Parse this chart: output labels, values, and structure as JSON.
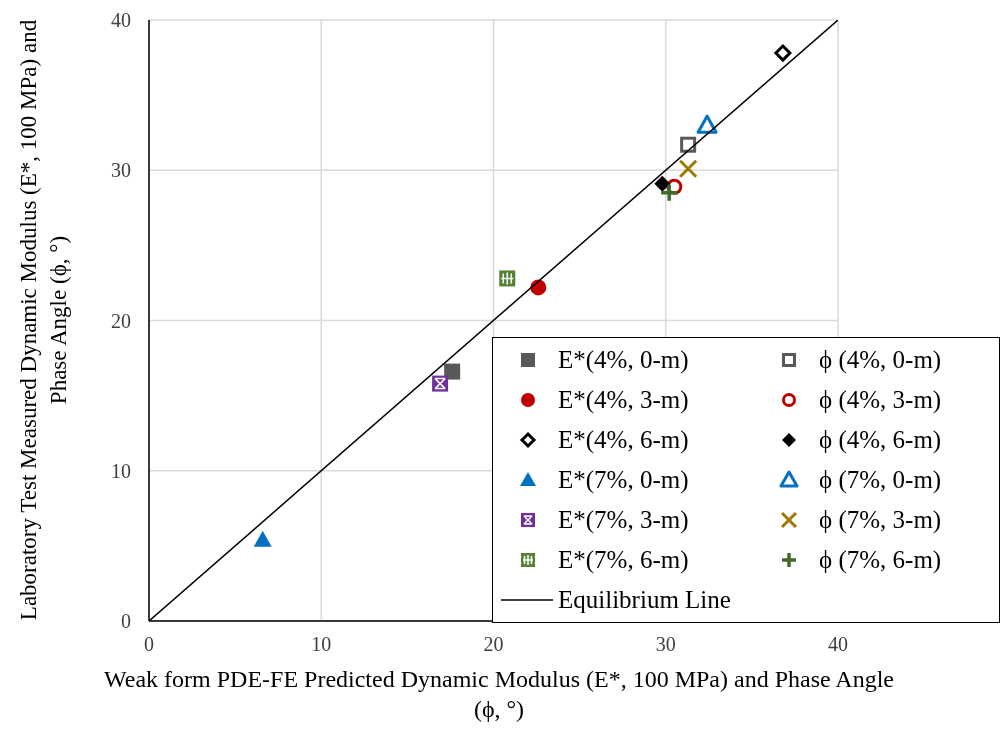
{
  "chart_data": {
    "type": "scatter",
    "xlabel": "Weak form PDE-FE Predicted Dynamic Modulus (E*, 100 MPa) and Phase Angle (ϕ, °)",
    "ylabel": "Laboratory Test Measured Dynamic Modulus (E*, 100 MPa) and Phase Angle (ϕ, °)",
    "xlim": [
      0,
      40
    ],
    "ylim": [
      0,
      40
    ],
    "xticks": [
      0,
      10,
      20,
      30,
      40
    ],
    "yticks": [
      0,
      10,
      20,
      30,
      40
    ],
    "grid": true,
    "legend": "bottom right",
    "series": [
      {
        "name": "E*(4%, 0-m)",
        "color": "#595959",
        "marker": "square",
        "x": [
          17.6
        ],
        "values": [
          16.6
        ]
      },
      {
        "name": "ϕ (4%, 0-m)",
        "color": "#595959",
        "marker": "square-open",
        "x": [
          31.3
        ],
        "values": [
          31.7
        ]
      },
      {
        "name": "E*(4%, 3-m)",
        "color": "#c00000",
        "marker": "circle",
        "x": [
          22.6
        ],
        "values": [
          22.2
        ]
      },
      {
        "name": "ϕ (4%, 3-m)",
        "color": "#c00000",
        "marker": "circle-open",
        "x": [
          30.5
        ],
        "values": [
          28.9
        ]
      },
      {
        "name": "E*(4%, 6-m)",
        "color": "#000000",
        "marker": "diamond-open",
        "x": [
          36.8
        ],
        "values": [
          37.8
        ]
      },
      {
        "name": "ϕ (4%, 6-m)",
        "color": "#000000",
        "marker": "diamond",
        "x": [
          29.8
        ],
        "values": [
          29.1
        ]
      },
      {
        "name": "E*(7%, 0-m)",
        "color": "#0070c0",
        "marker": "triangle",
        "x": [
          6.6
        ],
        "values": [
          5.4
        ]
      },
      {
        "name": "ϕ (7%, 0-m)",
        "color": "#0070c0",
        "marker": "triangle-open",
        "x": [
          32.4
        ],
        "values": [
          33.0
        ]
      },
      {
        "name": "E*(7%, 3-m)",
        "color": "#7030a0",
        "marker": "square-cross",
        "x": [
          16.9
        ],
        "values": [
          15.8
        ]
      },
      {
        "name": "ϕ (7%, 3-m)",
        "color": "#9c7a00",
        "marker": "cross",
        "x": [
          31.3
        ],
        "values": [
          30.1
        ]
      },
      {
        "name": "E*(7%, 6-m)",
        "color": "#548235",
        "marker": "square-plus",
        "x": [
          20.8
        ],
        "values": [
          22.8
        ]
      },
      {
        "name": "ϕ (7%, 6-m)",
        "color": "#3e6b2a",
        "marker": "plus",
        "x": [
          30.2
        ],
        "values": [
          28.5
        ]
      },
      {
        "name": "Equilibrium Line",
        "type": "line",
        "color": "#000000",
        "marker": "none",
        "line_style": "solid",
        "x": [
          0,
          40
        ],
        "values": [
          0,
          40
        ]
      }
    ]
  }
}
